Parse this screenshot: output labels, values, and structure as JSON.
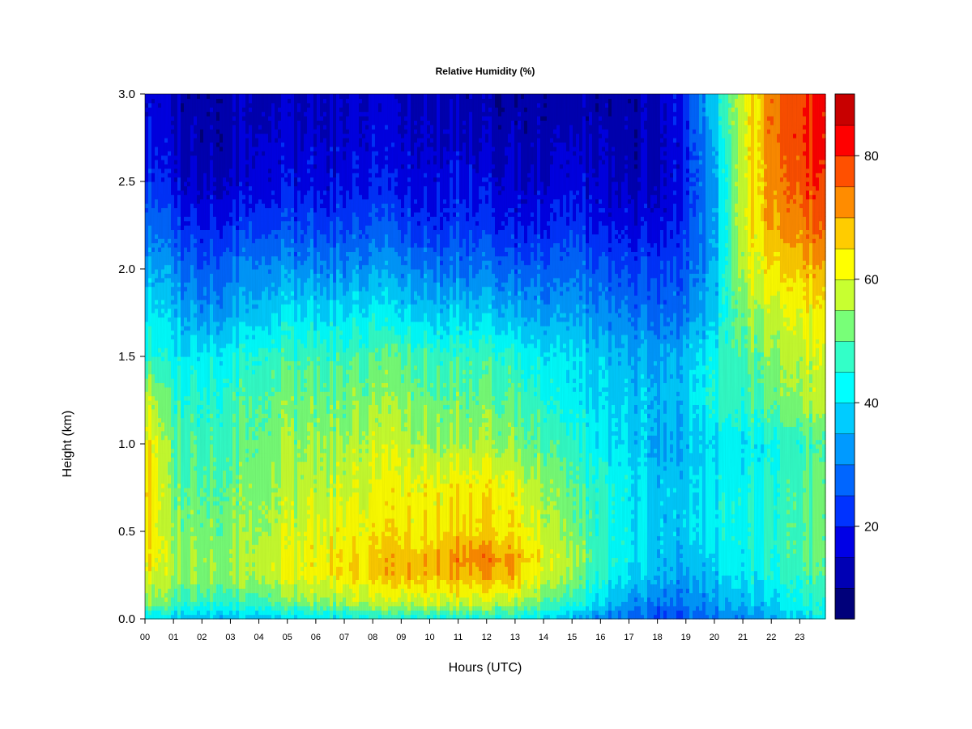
{
  "chart_data": {
    "type": "heatmap",
    "title": "Relative Humidity (%)",
    "xlabel": "Hours (UTC)",
    "ylabel": "Height (km)",
    "x_ticks": [
      "00",
      "01",
      "02",
      "03",
      "04",
      "05",
      "06",
      "07",
      "08",
      "09",
      "10",
      "11",
      "12",
      "13",
      "14",
      "15",
      "16",
      "17",
      "18",
      "19",
      "20",
      "21",
      "22",
      "23"
    ],
    "x_range": [
      0,
      23.9
    ],
    "y_ticks": [
      "0.0",
      "0.5",
      "1.0",
      "1.5",
      "2.0",
      "2.5",
      "3.0"
    ],
    "y_range": [
      0,
      3.0
    ],
    "colorbar": {
      "range": [
        5,
        90
      ],
      "levels": [
        5,
        10,
        15,
        20,
        25,
        30,
        35,
        40,
        45,
        50,
        55,
        60,
        65,
        70,
        75,
        80,
        85,
        90
      ],
      "tick_labels": [
        "20",
        "40",
        "60",
        "80"
      ],
      "colors": [
        "#00007a",
        "#0000b4",
        "#0000e6",
        "#0033ff",
        "#0066ff",
        "#009aff",
        "#00ccff",
        "#00ffff",
        "#33ffc8",
        "#78ff78",
        "#c8ff30",
        "#ffff00",
        "#ffcc00",
        "#ff8c00",
        "#ff5000",
        "#ff0000",
        "#c80000",
        "#800000"
      ]
    },
    "x_hours": [
      0,
      1,
      2,
      3,
      4,
      5,
      6,
      7,
      8,
      9,
      10,
      11,
      12,
      13,
      14,
      15,
      16,
      17,
      18,
      19,
      20,
      21,
      22,
      23
    ],
    "heights_km": [
      0.0,
      0.1,
      0.25,
      0.35,
      0.5,
      0.75,
      1.0,
      1.25,
      1.5,
      1.75,
      2.0,
      2.25,
      2.5,
      2.75,
      3.0
    ],
    "values": [
      [
        42,
        38,
        36,
        37,
        38,
        40,
        41,
        42,
        43,
        44,
        44,
        45,
        45,
        44,
        40,
        36,
        32,
        28,
        24,
        25,
        28,
        30,
        35,
        40
      ],
      [
        55,
        50,
        48,
        48,
        49,
        52,
        54,
        56,
        58,
        58,
        60,
        60,
        59,
        58,
        52,
        46,
        40,
        34,
        30,
        30,
        34,
        38,
        40,
        45
      ],
      [
        62,
        56,
        54,
        55,
        57,
        60,
        62,
        64,
        66,
        68,
        68,
        70,
        70,
        68,
        60,
        54,
        46,
        40,
        36,
        34,
        38,
        42,
        44,
        48
      ],
      [
        65,
        56,
        54,
        56,
        58,
        60,
        62,
        64,
        66,
        68,
        69,
        72,
        74,
        70,
        62,
        56,
        48,
        42,
        38,
        36,
        40,
        44,
        46,
        50
      ],
      [
        66,
        54,
        52,
        54,
        56,
        58,
        60,
        62,
        63,
        64,
        64,
        66,
        66,
        64,
        58,
        52,
        46,
        42,
        38,
        38,
        42,
        44,
        46,
        50
      ],
      [
        68,
        52,
        50,
        52,
        54,
        56,
        58,
        58,
        60,
        62,
        62,
        64,
        64,
        62,
        56,
        50,
        46,
        42,
        38,
        38,
        42,
        44,
        46,
        50
      ],
      [
        66,
        50,
        48,
        50,
        52,
        54,
        54,
        56,
        58,
        58,
        56,
        56,
        56,
        54,
        50,
        46,
        42,
        40,
        34,
        36,
        40,
        42,
        44,
        48
      ],
      [
        60,
        48,
        46,
        48,
        50,
        52,
        52,
        52,
        54,
        54,
        52,
        52,
        52,
        50,
        46,
        42,
        40,
        38,
        36,
        38,
        46,
        48,
        52,
        56
      ],
      [
        48,
        42,
        42,
        44,
        46,
        48,
        48,
        48,
        50,
        50,
        48,
        48,
        48,
        46,
        42,
        40,
        38,
        36,
        34,
        36,
        44,
        50,
        54,
        58
      ],
      [
        42,
        38,
        32,
        36,
        38,
        40,
        40,
        40,
        42,
        40,
        38,
        40,
        38,
        36,
        34,
        34,
        32,
        30,
        28,
        30,
        38,
        54,
        58,
        62
      ],
      [
        36,
        32,
        26,
        30,
        32,
        32,
        32,
        32,
        34,
        32,
        30,
        30,
        30,
        28,
        28,
        28,
        26,
        24,
        24,
        26,
        36,
        58,
        64,
        68
      ],
      [
        30,
        24,
        20,
        22,
        24,
        24,
        24,
        24,
        26,
        24,
        22,
        24,
        22,
        20,
        20,
        22,
        20,
        18,
        18,
        22,
        34,
        60,
        70,
        74
      ],
      [
        24,
        18,
        14,
        16,
        18,
        18,
        18,
        18,
        20,
        18,
        18,
        20,
        18,
        16,
        16,
        18,
        16,
        14,
        14,
        20,
        34,
        60,
        72,
        78
      ],
      [
        20,
        16,
        12,
        14,
        16,
        16,
        16,
        16,
        18,
        16,
        16,
        16,
        14,
        14,
        14,
        14,
        14,
        12,
        14,
        20,
        36,
        60,
        74,
        80
      ],
      [
        18,
        14,
        12,
        14,
        14,
        14,
        14,
        14,
        16,
        14,
        14,
        14,
        12,
        12,
        12,
        12,
        12,
        12,
        14,
        22,
        40,
        60,
        74,
        80
      ]
    ]
  }
}
